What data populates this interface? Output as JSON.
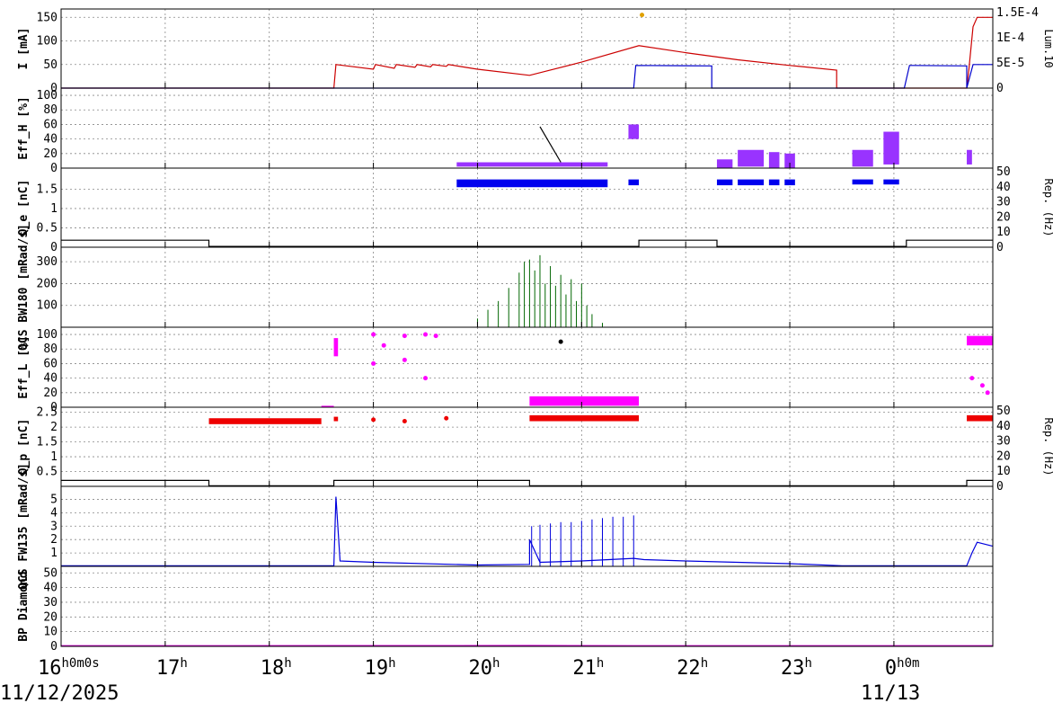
{
  "chart_data": {
    "type": "line",
    "time_axis": {
      "ticks": [
        {
          "main": "16",
          "sup": "h0m0s"
        },
        {
          "main": "17",
          "sup": "h"
        },
        {
          "main": "18",
          "sup": "h"
        },
        {
          "main": "19",
          "sup": "h"
        },
        {
          "main": "20",
          "sup": "h"
        },
        {
          "main": "21",
          "sup": "h"
        },
        {
          "main": "22",
          "sup": "h"
        },
        {
          "main": "23",
          "sup": "h"
        },
        {
          "main": "0",
          "sup": "h0m"
        }
      ],
      "tick_hours": [
        16,
        17,
        18,
        19,
        20,
        21,
        22,
        23,
        24
      ],
      "range_hours": [
        16,
        24.95
      ],
      "date_start": "11/12/2025",
      "date_next": "11/13"
    },
    "panels": [
      {
        "id": "current",
        "ylabel": "I [mA]",
        "ylim": [
          0,
          160
        ],
        "yticks": [
          "0",
          "50",
          "100",
          "150"
        ],
        "ytick_values": [
          0,
          50,
          100,
          150
        ],
        "right_ticks": [
          "0",
          "5E-5",
          "1E-4",
          "1.5E-4"
        ],
        "right_label": "Lum.10",
        "series": [
          {
            "color": "#cc0000",
            "points": [
              [
                16,
                0
              ],
              [
                18.62,
                0
              ],
              [
                18.64,
                50
              ],
              [
                19.0,
                40
              ],
              [
                19.02,
                50
              ],
              [
                19.2,
                42
              ],
              [
                19.22,
                50
              ],
              [
                19.4,
                44
              ],
              [
                19.42,
                50
              ],
              [
                19.55,
                45
              ],
              [
                19.57,
                50
              ],
              [
                19.7,
                46
              ],
              [
                19.72,
                50
              ],
              [
                20.0,
                40
              ],
              [
                20.5,
                27
              ],
              [
                20.5,
                27
              ],
              [
                21.0,
                55
              ],
              [
                21.55,
                90
              ],
              [
                22.0,
                75
              ],
              [
                22.5,
                60
              ],
              [
                23.0,
                48
              ],
              [
                23.45,
                38
              ],
              [
                23.45,
                0
              ],
              [
                24.7,
                0
              ],
              [
                24.72,
                40
              ],
              [
                24.76,
                130
              ],
              [
                24.8,
                150
              ],
              [
                24.95,
                150
              ]
            ]
          },
          {
            "color": "#0000cc",
            "points": [
              [
                16,
                0
              ],
              [
                21.5,
                0
              ],
              [
                21.52,
                48
              ],
              [
                22.25,
                47
              ],
              [
                22.25,
                0
              ],
              [
                24.1,
                0
              ],
              [
                24.15,
                48
              ],
              [
                24.7,
                47
              ],
              [
                24.7,
                0
              ],
              [
                24.76,
                50
              ],
              [
                24.95,
                50
              ]
            ]
          },
          {
            "color": "#e0a000",
            "points": [
              [
                21.58,
                155
              ]
            ]
          }
        ]
      },
      {
        "id": "effh",
        "ylabel": "Eff_H [%]",
        "ylim": [
          0,
          105
        ],
        "yticks": [
          "0",
          "20",
          "40",
          "60",
          "80",
          "100"
        ],
        "ytick_values": [
          0,
          20,
          40,
          60,
          80,
          100
        ],
        "series": [
          {
            "color": "#9933ff",
            "bands": [
              [
                19.8,
                21.25,
                2,
                8
              ],
              [
                21.45,
                21.55,
                40,
                60
              ],
              [
                22.3,
                22.45,
                0,
                12
              ],
              [
                22.5,
                22.75,
                2,
                25
              ],
              [
                22.8,
                22.9,
                0,
                22
              ],
              [
                22.95,
                23.05,
                0,
                20
              ],
              [
                23.6,
                23.8,
                2,
                25
              ],
              [
                23.9,
                24.05,
                5,
                50
              ],
              [
                24.7,
                24.75,
                5,
                25
              ]
            ]
          },
          {
            "color": "#000000",
            "points": [
              [
                20.6,
                57
              ],
              [
                20.8,
                8
              ]
            ]
          }
        ]
      },
      {
        "id": "qe",
        "ylabel": "Q_e [nC]",
        "ylim": [
          0,
          1.95
        ],
        "yticks": [
          "0",
          "0.5",
          "1",
          "1.5"
        ],
        "ytick_values": [
          0,
          0.5,
          1,
          1.5
        ],
        "right_ticks": [
          "0",
          "10",
          "20",
          "30",
          "40",
          "50"
        ],
        "right_label": "Rep. (Hz)",
        "series": [
          {
            "color": "#0000ee",
            "bands": [
              [
                19.8,
                21.25,
                1.55,
                1.75
              ],
              [
                21.45,
                21.55,
                1.6,
                1.75
              ],
              [
                22.3,
                22.45,
                1.6,
                1.75
              ],
              [
                22.5,
                22.75,
                1.6,
                1.75
              ],
              [
                22.8,
                22.9,
                1.6,
                1.75
              ],
              [
                22.95,
                23.05,
                1.6,
                1.75
              ],
              [
                23.6,
                23.8,
                1.62,
                1.75
              ],
              [
                23.9,
                24.05,
                1.62,
                1.75
              ]
            ]
          },
          {
            "color": "#000000",
            "points": [
              [
                16,
                0.18
              ],
              [
                17.42,
                0.18
              ],
              [
                17.42,
                0.02
              ],
              [
                21.55,
                0.02
              ],
              [
                21.55,
                0.18
              ],
              [
                22.3,
                0.18
              ],
              [
                22.3,
                0.02
              ],
              [
                24.12,
                0.02
              ],
              [
                24.12,
                0.18
              ],
              [
                24.95,
                0.18
              ]
            ]
          }
        ]
      },
      {
        "id": "qcsbw",
        "ylabel": "QCS BW180 [mRad/s]",
        "ylim": [
          0,
          350
        ],
        "yticks": [
          "100",
          "200",
          "300"
        ],
        "ytick_values": [
          100,
          200,
          300
        ],
        "series": [
          {
            "color": "#006600",
            "spikes": [
              [
                20.0,
                40
              ],
              [
                20.1,
                80
              ],
              [
                20.2,
                120
              ],
              [
                20.3,
                180
              ],
              [
                20.4,
                250
              ],
              [
                20.45,
                300
              ],
              [
                20.5,
                310
              ],
              [
                20.55,
                260
              ],
              [
                20.6,
                330
              ],
              [
                20.65,
                200
              ],
              [
                20.7,
                280
              ],
              [
                20.75,
                190
              ],
              [
                20.8,
                240
              ],
              [
                20.85,
                150
              ],
              [
                20.9,
                220
              ],
              [
                20.95,
                120
              ],
              [
                21.0,
                200
              ],
              [
                21.05,
                100
              ],
              [
                21.1,
                60
              ],
              [
                21.2,
                20
              ]
            ]
          }
        ]
      },
      {
        "id": "effl",
        "ylabel": "Eff_L [%]",
        "ylim": [
          0,
          105
        ],
        "yticks": [
          "0",
          "20",
          "40",
          "60",
          "80",
          "100"
        ],
        "ytick_values": [
          0,
          20,
          40,
          60,
          80,
          100
        ],
        "series": [
          {
            "color": "#ff00ff",
            "bands": [
              [
                18.5,
                18.62,
                0,
                2
              ],
              [
                18.62,
                18.66,
                70,
                95
              ],
              [
                20.5,
                21.55,
                2,
                15
              ],
              [
                24.7,
                24.95,
                85,
                98
              ]
            ],
            "points": [
              [
                19.0,
                100
              ],
              [
                19.1,
                85
              ],
              [
                19.3,
                98
              ],
              [
                19.5,
                100
              ],
              [
                19.6,
                98
              ],
              [
                19.0,
                60
              ],
              [
                19.3,
                65
              ],
              [
                19.5,
                40
              ],
              [
                24.75,
                40
              ],
              [
                24.85,
                30
              ],
              [
                24.9,
                20
              ]
            ]
          },
          {
            "color": "#000000",
            "points": [
              [
                20.8,
                90
              ]
            ]
          }
        ]
      },
      {
        "id": "qp",
        "ylabel": "Q_p [nC]",
        "ylim": [
          0,
          2.55
        ],
        "yticks": [
          "0.5",
          "1",
          "1.5",
          "2",
          "2.5"
        ],
        "ytick_values": [
          0.5,
          1,
          1.5,
          2,
          2.5
        ],
        "right_ticks": [
          "0",
          "10",
          "20",
          "30",
          "40",
          "50"
        ],
        "right_label": "Rep. (Hz)",
        "series": [
          {
            "color": "#ee0000",
            "bands": [
              [
                17.42,
                18.5,
                2.1,
                2.3
              ],
              [
                18.62,
                18.66,
                2.2,
                2.35
              ],
              [
                20.5,
                21.55,
                2.2,
                2.4
              ],
              [
                24.7,
                24.95,
                2.2,
                2.4
              ]
            ],
            "points": [
              [
                19.0,
                2.25
              ],
              [
                19.3,
                2.2
              ],
              [
                19.7,
                2.3
              ]
            ]
          },
          {
            "color": "#000000",
            "points": [
              [
                16,
                0.2
              ],
              [
                17.42,
                0.2
              ],
              [
                17.42,
                0.02
              ],
              [
                18.62,
                0.02
              ],
              [
                18.62,
                0.2
              ],
              [
                20.5,
                0.2
              ],
              [
                20.5,
                0.02
              ],
              [
                24.7,
                0.02
              ],
              [
                24.7,
                0.2
              ],
              [
                24.95,
                0.2
              ]
            ]
          }
        ]
      },
      {
        "id": "qcsfw",
        "ylabel": "QCS FW135 [mRad/s]",
        "ylim": [
          0,
          5.7
        ],
        "yticks": [
          "1",
          "2",
          "3",
          "4",
          "5"
        ],
        "ytick_values": [
          1,
          2,
          3,
          4,
          5
        ],
        "series": [
          {
            "color": "#0000dd",
            "points": [
              [
                16,
                0.05
              ],
              [
                18.62,
                0.05
              ],
              [
                18.64,
                5.2
              ],
              [
                18.68,
                0.4
              ],
              [
                19.0,
                0.3
              ],
              [
                20.0,
                0.1
              ],
              [
                20.5,
                0.15
              ],
              [
                20.5,
                2.0
              ],
              [
                20.6,
                0.3
              ],
              [
                21.0,
                0.4
              ],
              [
                21.5,
                0.6
              ],
              [
                21.6,
                0.5
              ],
              [
                22.0,
                0.4
              ],
              [
                22.5,
                0.3
              ],
              [
                23.0,
                0.2
              ],
              [
                23.5,
                0.05
              ],
              [
                24.7,
                0.05
              ],
              [
                24.75,
                1.0
              ],
              [
                24.8,
                1.8
              ],
              [
                24.95,
                1.5
              ]
            ],
            "spikes": [
              [
                20.52,
                3.0
              ],
              [
                20.6,
                3.1
              ],
              [
                20.7,
                3.2
              ],
              [
                20.8,
                3.3
              ],
              [
                20.9,
                3.3
              ],
              [
                21.0,
                3.4
              ],
              [
                21.1,
                3.5
              ],
              [
                21.2,
                3.6
              ],
              [
                21.3,
                3.7
              ],
              [
                21.4,
                3.7
              ],
              [
                21.5,
                3.8
              ]
            ]
          }
        ]
      },
      {
        "id": "bp",
        "ylabel": "BP Diamond",
        "ylim": [
          0,
          52
        ],
        "yticks": [
          "0",
          "10",
          "20",
          "30",
          "40",
          "50"
        ],
        "ytick_values": [
          0,
          10,
          20,
          30,
          40,
          50
        ],
        "series": [
          {
            "color": "#cc00cc",
            "points": [
              [
                16,
                0.5
              ],
              [
                17.5,
                0.5
              ],
              [
                20.5,
                0.6
              ],
              [
                21.5,
                0.5
              ],
              [
                24.95,
                0.5
              ]
            ]
          }
        ]
      }
    ]
  }
}
